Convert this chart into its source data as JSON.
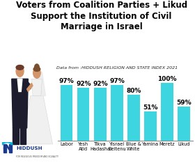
{
  "title": "Voters from Coalition Parties + Likud\nSupport the Institution of Civil\nMarriage in Israel",
  "subtitle": "Data from :HIDDUSH RELIGION AND STATE INDEX 2021",
  "categories": [
    "Labor",
    "Yesh\nAtid",
    "Tikva\nHadasha",
    "Yisrael\nBeitenu",
    "Blue &\nWhite",
    "Yamina",
    "Meretz",
    "Likud"
  ],
  "values": [
    97,
    92,
    92,
    97,
    80,
    51,
    100,
    59
  ],
  "bar_color": "#3DD6E0",
  "background_color": "#FFFFFF",
  "label_fontsize": 6.5,
  "tick_fontsize": 4.8,
  "title_fontsize": 8.5,
  "subtitle_fontsize": 4.5,
  "value_labels": [
    "97%",
    "92%",
    "92%",
    "97%",
    "80%",
    "51%",
    "100%",
    "59%"
  ],
  "hiddush_blue": "#1B3A8C",
  "hiddush_cyan": "#00B4D8",
  "logo_text": "HIDDUSH",
  "logo_subtext": "FOR RELIGIOUS FREEDOM AND EQUALITY"
}
